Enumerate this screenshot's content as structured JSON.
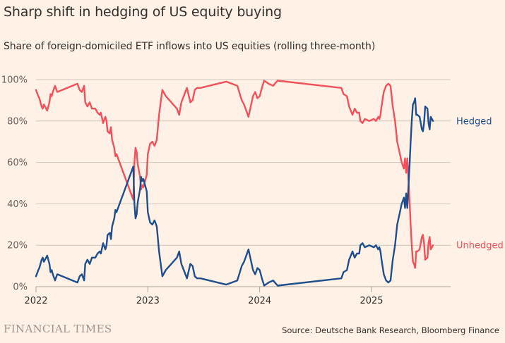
{
  "header": {
    "title": "Sharp shift in hedging of US equity buying",
    "subtitle": "Share of foreign-domiciled ETF inflows into US equities (rolling three-month)"
  },
  "footer": {
    "logo": "FINANCIAL TIMES",
    "source": "Source: Deutsche Bank Research, Bloomberg Finance"
  },
  "colors": {
    "background": "#FFF1E5",
    "hedged": "#1F4E8C",
    "unhedged": "#F2505A",
    "grid": "#CEC6BE"
  },
  "chart_data": {
    "type": "line",
    "title": "Sharp shift in hedging of US equity buying",
    "subtitle": "Share of foreign-domiciled ETF inflows into US equities (rolling three-month)",
    "xlabel": "",
    "ylabel": "",
    "xlim": [
      2022.0,
      2025.7
    ],
    "ylim": [
      0,
      100
    ],
    "y_ticks": [
      0,
      20,
      40,
      60,
      80,
      100
    ],
    "y_tick_labels": [
      "0%",
      "20%",
      "40%",
      "60%",
      "80%",
      "100%"
    ],
    "x_ticks": [
      2022,
      2023,
      2024,
      2025
    ],
    "x_tick_labels": [
      "2022",
      "2023",
      "2024",
      "2025"
    ],
    "grid": true,
    "legend": "direct labels at right end of lines",
    "series": [
      {
        "name": "Hedged",
        "label": "Hedged",
        "color": "#1F4E8C",
        "points": [
          [
            2022.0,
            5
          ],
          [
            2022.02,
            8
          ],
          [
            2022.03,
            9
          ],
          [
            2022.05,
            13
          ],
          [
            2022.06,
            14
          ],
          [
            2022.07,
            12
          ],
          [
            2022.08,
            13
          ],
          [
            2022.1,
            15
          ],
          [
            2022.11,
            13
          ],
          [
            2022.12,
            11
          ],
          [
            2022.13,
            7
          ],
          [
            2022.14,
            8
          ],
          [
            2022.15,
            6
          ],
          [
            2022.17,
            3
          ],
          [
            2022.19,
            6
          ],
          [
            2022.37,
            2
          ],
          [
            2022.39,
            5
          ],
          [
            2022.41,
            6
          ],
          [
            2022.43,
            3
          ],
          [
            2022.44,
            11
          ],
          [
            2022.46,
            13
          ],
          [
            2022.48,
            11
          ],
          [
            2022.5,
            14
          ],
          [
            2022.53,
            14
          ],
          [
            2022.55,
            16
          ],
          [
            2022.57,
            17
          ],
          [
            2022.58,
            16
          ],
          [
            2022.6,
            21
          ],
          [
            2022.62,
            18
          ],
          [
            2022.63,
            20
          ],
          [
            2022.64,
            25
          ],
          [
            2022.66,
            26
          ],
          [
            2022.67,
            23
          ],
          [
            2022.68,
            29
          ],
          [
            2022.7,
            33
          ],
          [
            2022.71,
            37
          ],
          [
            2022.72,
            36
          ],
          [
            2022.87,
            58
          ],
          [
            2022.88,
            40
          ],
          [
            2022.89,
            33
          ],
          [
            2022.9,
            35
          ],
          [
            2022.91,
            41
          ],
          [
            2022.92,
            44
          ],
          [
            2022.93,
            47
          ],
          [
            2022.94,
            53
          ],
          [
            2022.95,
            51
          ],
          [
            2022.96,
            52
          ],
          [
            2022.98,
            48
          ],
          [
            2022.99,
            46
          ],
          [
            2023.0,
            36
          ],
          [
            2023.02,
            31
          ],
          [
            2023.04,
            30
          ],
          [
            2023.06,
            32
          ],
          [
            2023.08,
            29
          ],
          [
            2023.1,
            17
          ],
          [
            2023.13,
            5
          ],
          [
            2023.16,
            8
          ],
          [
            2023.26,
            14
          ],
          [
            2023.28,
            17
          ],
          [
            2023.3,
            11
          ],
          [
            2023.35,
            4
          ],
          [
            2023.38,
            11
          ],
          [
            2023.4,
            10
          ],
          [
            2023.42,
            5
          ],
          [
            2023.44,
            4
          ],
          [
            2023.47,
            4
          ],
          [
            2023.7,
            1
          ],
          [
            2023.8,
            3
          ],
          [
            2023.84,
            10
          ],
          [
            2023.86,
            12
          ],
          [
            2023.88,
            15
          ],
          [
            2023.9,
            18
          ],
          [
            2023.92,
            13
          ],
          [
            2023.94,
            8
          ],
          [
            2023.96,
            6
          ],
          [
            2023.98,
            9
          ],
          [
            2024.0,
            8
          ],
          [
            2024.02,
            4
          ],
          [
            2024.04,
            0.5
          ],
          [
            2024.08,
            2
          ],
          [
            2024.12,
            3
          ],
          [
            2024.16,
            0.5
          ],
          [
            2024.73,
            4
          ],
          [
            2024.75,
            7
          ],
          [
            2024.78,
            8
          ],
          [
            2024.8,
            13
          ],
          [
            2024.83,
            17
          ],
          [
            2024.85,
            14
          ],
          [
            2024.87,
            16
          ],
          [
            2024.89,
            16
          ],
          [
            2024.9,
            20
          ],
          [
            2024.92,
            21
          ],
          [
            2024.94,
            19
          ],
          [
            2024.98,
            20
          ],
          [
            2025.02,
            19
          ],
          [
            2025.04,
            20
          ],
          [
            2025.06,
            18
          ],
          [
            2025.07,
            19
          ],
          [
            2025.08,
            17
          ],
          [
            2025.09,
            13
          ],
          [
            2025.11,
            6
          ],
          [
            2025.13,
            3
          ],
          [
            2025.15,
            2
          ],
          [
            2025.17,
            3
          ],
          [
            2025.19,
            13
          ],
          [
            2025.21,
            20
          ],
          [
            2025.23,
            30
          ],
          [
            2025.25,
            35
          ],
          [
            2025.27,
            40
          ],
          [
            2025.29,
            43
          ],
          [
            2025.3,
            38
          ],
          [
            2025.31,
            45
          ],
          [
            2025.32,
            38
          ],
          [
            2025.34,
            58
          ],
          [
            2025.35,
            70
          ],
          [
            2025.36,
            80
          ],
          [
            2025.37,
            88
          ],
          [
            2025.38,
            89
          ],
          [
            2025.39,
            91
          ],
          [
            2025.4,
            83
          ],
          [
            2025.41,
            83
          ],
          [
            2025.43,
            82
          ],
          [
            2025.45,
            76
          ],
          [
            2025.46,
            75
          ],
          [
            2025.47,
            79
          ],
          [
            2025.48,
            87
          ],
          [
            2025.5,
            86
          ],
          [
            2025.51,
            79
          ],
          [
            2025.52,
            76
          ],
          [
            2025.53,
            82
          ],
          [
            2025.54,
            81
          ],
          [
            2025.55,
            80
          ]
        ]
      },
      {
        "name": "Unhedged",
        "label": "Unhedged",
        "color": "#F2505A",
        "points": [
          [
            2022.0,
            95
          ],
          [
            2022.02,
            92
          ],
          [
            2022.03,
            91
          ],
          [
            2022.05,
            87
          ],
          [
            2022.06,
            86
          ],
          [
            2022.07,
            88
          ],
          [
            2022.08,
            87
          ],
          [
            2022.1,
            85
          ],
          [
            2022.11,
            87
          ],
          [
            2022.12,
            89
          ],
          [
            2022.13,
            93
          ],
          [
            2022.14,
            92
          ],
          [
            2022.15,
            94
          ],
          [
            2022.17,
            97
          ],
          [
            2022.19,
            94
          ],
          [
            2022.37,
            98
          ],
          [
            2022.39,
            95
          ],
          [
            2022.41,
            94
          ],
          [
            2022.43,
            97
          ],
          [
            2022.44,
            89
          ],
          [
            2022.46,
            87
          ],
          [
            2022.48,
            89
          ],
          [
            2022.5,
            86
          ],
          [
            2022.53,
            86
          ],
          [
            2022.55,
            84
          ],
          [
            2022.57,
            83
          ],
          [
            2022.58,
            84
          ],
          [
            2022.6,
            79
          ],
          [
            2022.62,
            82
          ],
          [
            2022.63,
            80
          ],
          [
            2022.64,
            75
          ],
          [
            2022.66,
            74
          ],
          [
            2022.67,
            77
          ],
          [
            2022.68,
            71
          ],
          [
            2022.7,
            67
          ],
          [
            2022.71,
            63
          ],
          [
            2022.72,
            64
          ],
          [
            2022.87,
            42
          ],
          [
            2022.88,
            60
          ],
          [
            2022.89,
            67
          ],
          [
            2022.9,
            65
          ],
          [
            2022.91,
            59
          ],
          [
            2022.92,
            56
          ],
          [
            2022.93,
            53
          ],
          [
            2022.94,
            47
          ],
          [
            2022.95,
            49
          ],
          [
            2022.96,
            48
          ],
          [
            2022.98,
            52
          ],
          [
            2022.99,
            54
          ],
          [
            2023.0,
            64
          ],
          [
            2023.02,
            69
          ],
          [
            2023.04,
            70
          ],
          [
            2023.06,
            68
          ],
          [
            2023.08,
            71
          ],
          [
            2023.1,
            83
          ],
          [
            2023.13,
            95
          ],
          [
            2023.16,
            92
          ],
          [
            2023.26,
            86
          ],
          [
            2023.28,
            83
          ],
          [
            2023.3,
            89
          ],
          [
            2023.35,
            96
          ],
          [
            2023.38,
            89
          ],
          [
            2023.4,
            90
          ],
          [
            2023.42,
            95
          ],
          [
            2023.44,
            96
          ],
          [
            2023.47,
            96
          ],
          [
            2023.7,
            99
          ],
          [
            2023.8,
            97
          ],
          [
            2023.84,
            90
          ],
          [
            2023.86,
            88
          ],
          [
            2023.88,
            85
          ],
          [
            2023.9,
            82
          ],
          [
            2023.92,
            87
          ],
          [
            2023.94,
            92
          ],
          [
            2023.96,
            94
          ],
          [
            2023.98,
            91
          ],
          [
            2024.0,
            92
          ],
          [
            2024.02,
            96
          ],
          [
            2024.04,
            99.5
          ],
          [
            2024.08,
            98
          ],
          [
            2024.12,
            97
          ],
          [
            2024.16,
            99.5
          ],
          [
            2024.73,
            96
          ],
          [
            2024.75,
            93
          ],
          [
            2024.78,
            92
          ],
          [
            2024.8,
            87
          ],
          [
            2024.83,
            83
          ],
          [
            2024.85,
            86
          ],
          [
            2024.87,
            84
          ],
          [
            2024.89,
            84
          ],
          [
            2024.9,
            80
          ],
          [
            2024.92,
            79
          ],
          [
            2024.94,
            81
          ],
          [
            2024.98,
            80
          ],
          [
            2025.02,
            81
          ],
          [
            2025.04,
            80
          ],
          [
            2025.06,
            82
          ],
          [
            2025.07,
            81
          ],
          [
            2025.08,
            83
          ],
          [
            2025.09,
            87
          ],
          [
            2025.11,
            94
          ],
          [
            2025.13,
            97
          ],
          [
            2025.15,
            98
          ],
          [
            2025.17,
            97
          ],
          [
            2025.19,
            87
          ],
          [
            2025.21,
            80
          ],
          [
            2025.23,
            70
          ],
          [
            2025.25,
            65
          ],
          [
            2025.27,
            60
          ],
          [
            2025.29,
            57
          ],
          [
            2025.3,
            62
          ],
          [
            2025.31,
            55
          ],
          [
            2025.32,
            62
          ],
          [
            2025.34,
            42
          ],
          [
            2025.35,
            30
          ],
          [
            2025.36,
            20
          ],
          [
            2025.37,
            12
          ],
          [
            2025.38,
            11
          ],
          [
            2025.39,
            9
          ],
          [
            2025.4,
            17
          ],
          [
            2025.41,
            17
          ],
          [
            2025.43,
            18
          ],
          [
            2025.45,
            24
          ],
          [
            2025.46,
            25
          ],
          [
            2025.47,
            21
          ],
          [
            2025.48,
            13
          ],
          [
            2025.5,
            14
          ],
          [
            2025.51,
            21
          ],
          [
            2025.52,
            24
          ],
          [
            2025.53,
            18
          ],
          [
            2025.54,
            19
          ],
          [
            2025.55,
            20
          ]
        ]
      }
    ]
  }
}
